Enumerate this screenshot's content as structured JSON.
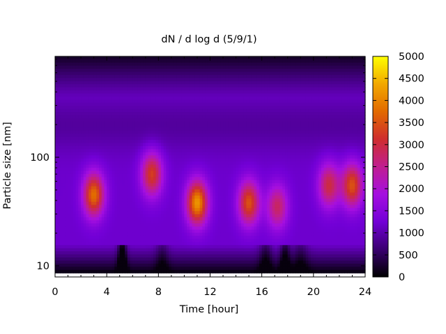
{
  "chart_data": {
    "type": "heatmap",
    "title": "dN / d log d (5/9/1)",
    "xlabel": "Time [hour]",
    "ylabel": "Particle size [nm]",
    "x_range": [
      0,
      24
    ],
    "y_range_nm": [
      7.9,
      850
    ],
    "y_scale": "log",
    "x_ticks": [
      0,
      4,
      8,
      12,
      16,
      20,
      24
    ],
    "x_tick_labels": [
      "0",
      "4",
      "8",
      "12",
      "16",
      "20",
      "24"
    ],
    "y_ticks": [
      10,
      100
    ],
    "y_tick_labels": [
      "10",
      "100"
    ],
    "colorbar": {
      "min": 0,
      "max": 5000,
      "ticks": [
        0,
        500,
        1000,
        1500,
        2000,
        2500,
        3000,
        3500,
        4000,
        4500,
        5000
      ],
      "tick_labels": [
        "0",
        "500",
        "1000",
        "1500",
        "2000",
        "2500",
        "3000",
        "3500",
        "4000",
        "4500",
        "5000"
      ],
      "palette": [
        "#000000",
        "#3a0070",
        "#7200d6",
        "#a50fe0",
        "#c01e90",
        "#cf2e2e",
        "#e26a00",
        "#f2a800",
        "#ffff00"
      ]
    },
    "background_level": 1200,
    "bursts": [
      {
        "time_h": 3.0,
        "diameter_nm": 45,
        "peak": 3800
      },
      {
        "time_h": 7.5,
        "diameter_nm": 70,
        "peak": 3300
      },
      {
        "time_h": 11.0,
        "diameter_nm": 38,
        "peak": 4200
      },
      {
        "time_h": 15.0,
        "diameter_nm": 38,
        "peak": 3500
      },
      {
        "time_h": 17.2,
        "diameter_nm": 35,
        "peak": 2800
      },
      {
        "time_h": 21.2,
        "diameter_nm": 55,
        "peak": 3000
      },
      {
        "time_h": 23.0,
        "diameter_nm": 55,
        "peak": 3500
      }
    ]
  }
}
